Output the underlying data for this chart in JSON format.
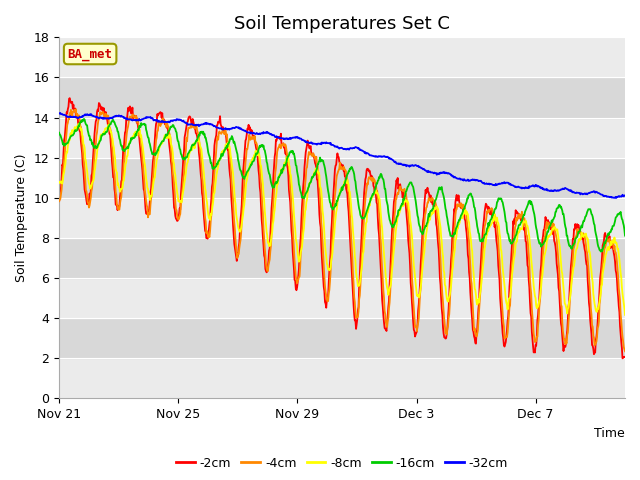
{
  "title": "Soil Temperatures Set C",
  "xlabel": "Time",
  "ylabel": "Soil Temperature (C)",
  "ylim": [
    0,
    18
  ],
  "yticks": [
    0,
    2,
    4,
    6,
    8,
    10,
    12,
    14,
    16,
    18
  ],
  "annotation": "BA_met",
  "legend_entries": [
    "-2cm",
    "-4cm",
    "-8cm",
    "-16cm",
    "-32cm"
  ],
  "line_colors": [
    "#ff0000",
    "#ff8800",
    "#ffff00",
    "#00cc00",
    "#0000ff"
  ],
  "background_color": "#ffffff",
  "plot_bg_stripe_light": "#ebebeb",
  "plot_bg_stripe_dark": "#d8d8d8",
  "x_tick_labels": [
    "Nov 21",
    "Nov 25",
    "Nov 29",
    "Dec 3",
    "Dec 7"
  ],
  "x_tick_positions": [
    0,
    4,
    8,
    12,
    16
  ],
  "total_days": 19,
  "annotation_color": "#cc0000",
  "annotation_bg": "#ffffcc",
  "annotation_edge": "#999900"
}
